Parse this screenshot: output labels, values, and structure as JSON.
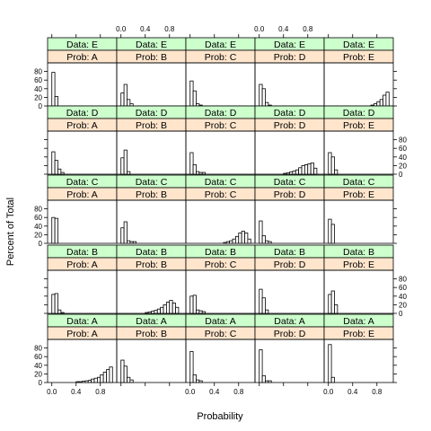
{
  "chart_data": {
    "type": "bar",
    "layout": "lattice histogram grid, 5 columns x 5 rows",
    "xlabel": "Probability",
    "ylabel": "Percent of Total",
    "xlim": [
      -0.07,
      1.07
    ],
    "ylim": [
      0,
      100
    ],
    "x_ticks": [
      0.0,
      0.4,
      0.8
    ],
    "x_tick_labels": [
      "0.0",
      "0.4",
      "0.8"
    ],
    "y_ticks": [
      0,
      20,
      40,
      60,
      80
    ],
    "y_tick_labels": [
      "0",
      "20",
      "40",
      "60",
      "80"
    ],
    "bin_starts": [
      0.0,
      0.05,
      0.1,
      0.15,
      0.2,
      0.25,
      0.3,
      0.35,
      0.4,
      0.45,
      0.5,
      0.55,
      0.6,
      0.65,
      0.7,
      0.75,
      0.8,
      0.85,
      0.9,
      0.95
    ],
    "bin_width": 0.05,
    "grid": false,
    "colors": {
      "data_strip": "#ccffcc",
      "prob_strip": "#ffe5cc",
      "bar_fill": "#ffffff",
      "bar_stroke": "#000000",
      "panel_border": "#000000"
    },
    "panels": [
      {
        "row": 0,
        "col": 0,
        "data": "Data: E",
        "prob": "Prob: A",
        "values": [
          78,
          22,
          0,
          0,
          0,
          0,
          0,
          0,
          0,
          0,
          0,
          0,
          0,
          0,
          0,
          0,
          0,
          0,
          0,
          0
        ]
      },
      {
        "row": 0,
        "col": 1,
        "data": "Data: E",
        "prob": "Prob: B",
        "values": [
          30,
          50,
          15,
          5,
          0,
          0,
          0,
          0,
          0,
          0,
          0,
          0,
          0,
          0,
          0,
          0,
          0,
          0,
          0,
          0
        ]
      },
      {
        "row": 0,
        "col": 2,
        "data": "Data: E",
        "prob": "Prob: C",
        "values": [
          58,
          35,
          5,
          2,
          0,
          0,
          0,
          0,
          0,
          0,
          0,
          0,
          0,
          0,
          0,
          0,
          0,
          0,
          0,
          0
        ]
      },
      {
        "row": 0,
        "col": 3,
        "data": "Data: E",
        "prob": "Prob: D",
        "values": [
          50,
          40,
          8,
          2,
          0,
          0,
          0,
          0,
          0,
          0,
          0,
          0,
          0,
          0,
          0,
          0,
          0,
          0,
          0,
          0
        ]
      },
      {
        "row": 0,
        "col": 4,
        "data": "Data: E",
        "prob": "Prob: E",
        "values": [
          0,
          0,
          0,
          0,
          0,
          0,
          0,
          0,
          0,
          0,
          0,
          0,
          0,
          0,
          2,
          5,
          10,
          15,
          25,
          32
        ]
      },
      {
        "row": 1,
        "col": 0,
        "data": "Data: D",
        "prob": "Prob: A",
        "values": [
          52,
          32,
          12,
          4,
          0,
          0,
          0,
          0,
          0,
          0,
          0,
          0,
          0,
          0,
          0,
          0,
          0,
          0,
          0,
          0
        ]
      },
      {
        "row": 1,
        "col": 1,
        "data": "Data: D",
        "prob": "Prob: B",
        "values": [
          38,
          56,
          6,
          0,
          0,
          0,
          0,
          0,
          0,
          0,
          0,
          0,
          0,
          0,
          0,
          0,
          0,
          0,
          0,
          0
        ]
      },
      {
        "row": 1,
        "col": 2,
        "data": "Data: D",
        "prob": "Prob: C",
        "values": [
          50,
          22,
          6,
          4,
          4,
          0,
          0,
          0,
          0,
          0,
          0,
          0,
          0,
          0,
          0,
          0,
          0,
          0,
          0,
          0
        ]
      },
      {
        "row": 1,
        "col": 3,
        "data": "Data: D",
        "prob": "Prob: E",
        "values": [
          0,
          0,
          0,
          0,
          0,
          0,
          0,
          0,
          0,
          0,
          0,
          0,
          0,
          0,
          0,
          0,
          0,
          0,
          0,
          0
        ]
      },
      {
        "row": 1,
        "col": 3,
        "data": "Data: D",
        "prob": "Prob: D",
        "values": [
          0,
          0,
          0,
          0,
          0,
          0,
          0,
          0,
          2,
          3,
          5,
          7,
          10,
          15,
          20,
          22,
          24,
          26,
          14,
          0
        ]
      },
      {
        "row": 1,
        "col": 4,
        "data": "Data: D",
        "prob": "Prob: E",
        "values": [
          50,
          40,
          10,
          0,
          0,
          0,
          0,
          0,
          0,
          0,
          0,
          0,
          0,
          0,
          0,
          0,
          0,
          0,
          0,
          0
        ]
      },
      {
        "row": 2,
        "col": 0,
        "data": "Data: C",
        "prob": "Prob: A",
        "values": [
          60,
          58,
          0,
          0,
          0,
          0,
          0,
          0,
          0,
          0,
          0,
          0,
          0,
          0,
          0,
          0,
          0,
          0,
          0,
          0
        ]
      },
      {
        "row": 2,
        "col": 1,
        "data": "Data: C",
        "prob": "Prob: B",
        "values": [
          36,
          50,
          6,
          4,
          4,
          0,
          0,
          0,
          0,
          0,
          0,
          0,
          0,
          0,
          0,
          0,
          0,
          0,
          0,
          0
        ]
      },
      {
        "row": 2,
        "col": 2,
        "data": "Data: C",
        "prob": "Prob: C",
        "values": [
          0,
          0,
          0,
          0,
          0,
          0,
          0,
          0,
          0,
          0,
          0,
          2,
          4,
          6,
          10,
          16,
          24,
          28,
          24,
          10
        ]
      },
      {
        "row": 2,
        "col": 3,
        "data": "Data: C",
        "prob": "Prob: D",
        "values": [
          52,
          18,
          6,
          4,
          0,
          0,
          0,
          0,
          0,
          0,
          0,
          0,
          0,
          0,
          0,
          0,
          0,
          0,
          0,
          0
        ]
      },
      {
        "row": 2,
        "col": 4,
        "data": "Data: C",
        "prob": "Prob: E",
        "values": [
          56,
          44,
          0,
          0,
          0,
          0,
          0,
          0,
          0,
          0,
          0,
          0,
          0,
          0,
          0,
          0,
          0,
          0,
          0,
          0
        ]
      },
      {
        "row": 3,
        "col": 0,
        "data": "Data: B",
        "prob": "Prob: A",
        "values": [
          44,
          46,
          8,
          2,
          0,
          0,
          0,
          0,
          0,
          0,
          0,
          0,
          0,
          0,
          0,
          0,
          0,
          0,
          0,
          0
        ]
      },
      {
        "row": 3,
        "col": 1,
        "data": "Data: B",
        "prob": "Prob: B",
        "values": [
          0,
          0,
          0,
          0,
          0,
          0,
          0,
          0,
          2,
          3,
          5,
          7,
          10,
          14,
          20,
          26,
          30,
          24,
          14,
          0
        ]
      },
      {
        "row": 3,
        "col": 2,
        "data": "Data: B",
        "prob": "Prob: C",
        "values": [
          40,
          42,
          8,
          6,
          4,
          0,
          0,
          0,
          0,
          0,
          0,
          0,
          0,
          0,
          0,
          0,
          0,
          0,
          0,
          0
        ]
      },
      {
        "row": 3,
        "col": 3,
        "data": "Data: B",
        "prob": "Prob: D",
        "values": [
          56,
          36,
          8,
          0,
          0,
          0,
          0,
          0,
          0,
          0,
          0,
          0,
          0,
          0,
          0,
          0,
          0,
          0,
          0,
          0
        ]
      },
      {
        "row": 3,
        "col": 4,
        "data": "Data: B",
        "prob": "Prob: E",
        "values": [
          44,
          52,
          20,
          0,
          0,
          0,
          0,
          0,
          0,
          0,
          0,
          0,
          0,
          0,
          0,
          0,
          0,
          0,
          0,
          0
        ]
      },
      {
        "row": 4,
        "col": 0,
        "data": "Data: A",
        "prob": "Prob: A",
        "values": [
          0,
          0,
          0,
          0,
          0,
          0,
          0,
          0,
          2,
          2,
          3,
          4,
          5,
          8,
          10,
          12,
          18,
          24,
          30,
          36
        ]
      },
      {
        "row": 4,
        "col": 1,
        "data": "Data: A",
        "prob": "Prob: B",
        "values": [
          52,
          38,
          12,
          6,
          0,
          0,
          0,
          0,
          0,
          0,
          0,
          0,
          0,
          0,
          0,
          0,
          0,
          0,
          0,
          0
        ]
      },
      {
        "row": 4,
        "col": 2,
        "data": "Data: A",
        "prob": "Prob: C",
        "values": [
          72,
          18,
          6,
          4,
          0,
          0,
          0,
          0,
          0,
          0,
          0,
          0,
          0,
          0,
          0,
          0,
          0,
          0,
          0,
          0
        ]
      },
      {
        "row": 4,
        "col": 3,
        "data": "Data: A",
        "prob": "Prob: D",
        "values": [
          76,
          16,
          4,
          4,
          0,
          0,
          0,
          0,
          0,
          0,
          0,
          0,
          0,
          0,
          0,
          0,
          0,
          0,
          0,
          0
        ]
      },
      {
        "row": 4,
        "col": 4,
        "data": "Data: A",
        "prob": "Prob: E",
        "values": [
          88,
          12,
          0,
          0,
          0,
          0,
          0,
          0,
          0,
          0,
          0,
          0,
          0,
          0,
          0,
          0,
          0,
          0,
          0,
          0
        ]
      }
    ]
  }
}
